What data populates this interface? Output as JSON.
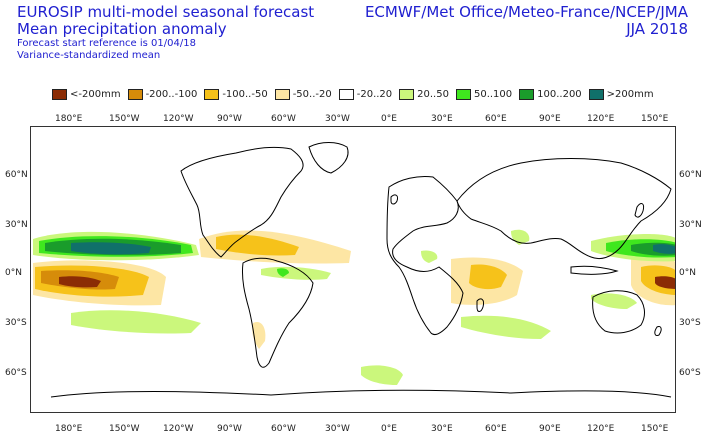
{
  "header": {
    "title_line1": "EUROSIP multi-model seasonal forecast",
    "title_line2": "Mean precipitation anomaly",
    "subtitle_line1": "Forecast start reference is 01/04/18",
    "subtitle_line2": "Variance-standardized mean",
    "centres": "ECMWF/Met Office/Meteo-France/NCEP/JMA",
    "season": "JJA 2018"
  },
  "legend": [
    {
      "label": "<-200mm",
      "color": "#8b2c05"
    },
    {
      "label": "-200..-100",
      "color": "#d68c0a"
    },
    {
      "label": "-100..-50",
      "color": "#f6c21a"
    },
    {
      "label": "-50..-20",
      "color": "#fde6a4"
    },
    {
      "label": "-20..20",
      "color": "#ffffff"
    },
    {
      "label": "20..50",
      "color": "#cbf77c"
    },
    {
      "label": "50..100",
      "color": "#3fe71e"
    },
    {
      "label": "100..200",
      "color": "#1a9c2b"
    },
    {
      "label": ">200mm",
      "color": "#10706a"
    }
  ],
  "axes": {
    "lon_top": [
      "180°E",
      "150°W",
      "120°W",
      "90°W",
      "60°W",
      "30°W",
      "0°E",
      "30°E",
      "60°E",
      "90°E",
      "120°E",
      "150°E"
    ],
    "lon_bottom": [
      "180°E",
      "150°W",
      "120°W",
      "90°W",
      "60°W",
      "30°W",
      "0°E",
      "30°E",
      "60°E",
      "90°E",
      "120°E",
      "150°E"
    ],
    "lat_left": [
      "60°N",
      "30°N",
      "0°N",
      "30°S",
      "60°S"
    ],
    "lat_right": [
      "60°N",
      "30°N",
      "0°N",
      "30°S",
      "60°S"
    ]
  }
}
